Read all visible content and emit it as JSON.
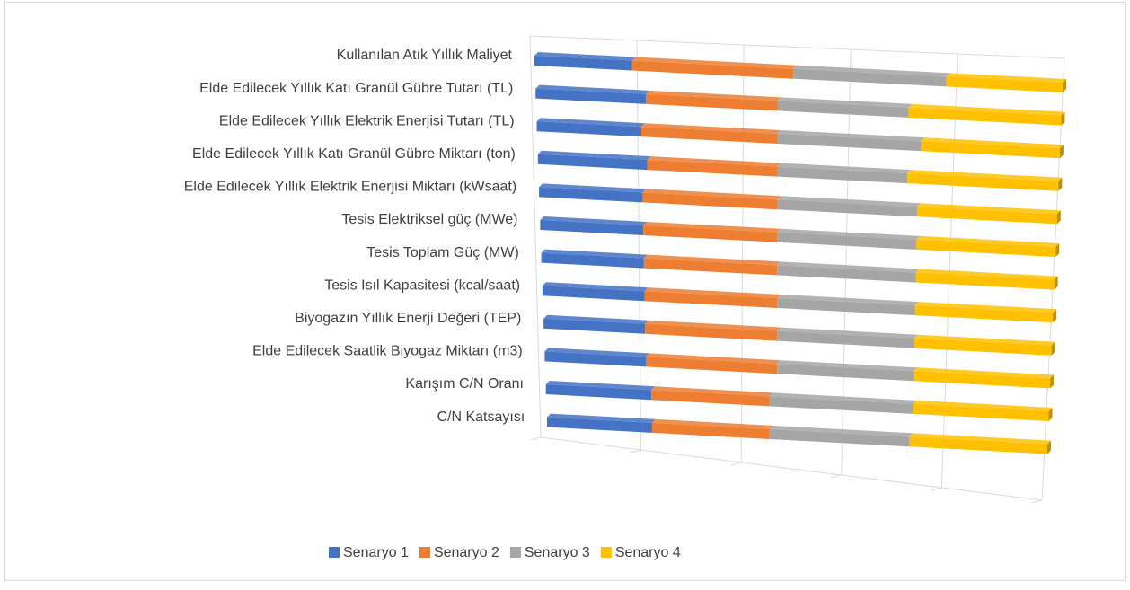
{
  "chart_data": {
    "type": "bar",
    "orientation": "horizontal",
    "stacked": "percent",
    "categories": [
      "Kullanılan Atık Yıllık Maliyet",
      "Elde Edilecek Yıllık Katı Granül Gübre Tutarı (TL)",
      "Elde Edilecek Yıllık Elektrik Enerjisi Tutarı (TL)",
      "Elde Edilecek Yıllık Katı Granül Gübre Miktarı (ton)",
      "Elde Edilecek Yıllık Elektrik Enerjisi Miktarı (kWsaat)",
      "Tesis Elektriksel güç (MWe)",
      "Tesis Toplam Güç (MW)",
      "Tesis Isıl Kapasitesi (kcal/saat)",
      "Biyogazın Yıllık Enerji Değeri (TEP)",
      "Elde Edilecek Saatlik Biyogaz Miktarı (m3)",
      "Karışım C/N Oranı",
      "C/N Katsayısı"
    ],
    "series": [
      {
        "name": "Senaryo 1",
        "color": "#4472c4",
        "values": [
          18.5,
          21,
          20,
          21,
          20,
          20,
          20,
          20,
          20,
          20,
          21,
          21
        ]
      },
      {
        "name": "Senaryo 2",
        "color": "#ed7d31",
        "values": [
          30.5,
          25,
          26,
          25,
          26,
          26,
          26,
          26,
          26,
          26,
          23.5,
          23.5
        ]
      },
      {
        "name": "Senaryo 3",
        "color": "#a5a5a5",
        "values": [
          29,
          25,
          27.5,
          25,
          27,
          27,
          27,
          27,
          27,
          27,
          28.5,
          28
        ]
      },
      {
        "name": "Senaryo 4",
        "color": "#ffc000",
        "values": [
          22,
          29,
          26.5,
          29,
          27,
          27,
          27,
          27,
          27,
          27,
          27,
          27.5
        ]
      }
    ],
    "xlim": [
      0,
      100
    ],
    "xticks": [
      0,
      20,
      40,
      60,
      80,
      100
    ],
    "grid": true,
    "legend": "bottom"
  }
}
